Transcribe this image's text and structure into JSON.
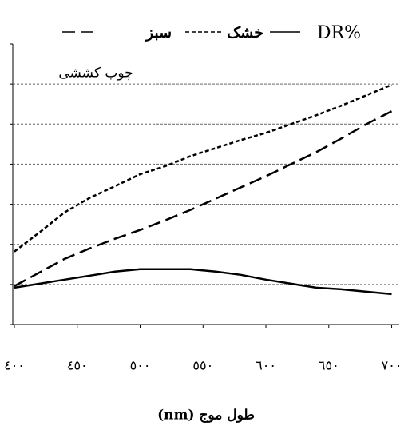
{
  "chart_data": {
    "type": "line",
    "annotation": "چوب کششی",
    "x_label": "طول موج (nm)",
    "x": [
      400,
      420,
      440,
      460,
      480,
      500,
      520,
      540,
      560,
      580,
      600,
      620,
      640,
      660,
      680,
      700
    ],
    "series": [
      {
        "name": "DR%",
        "color": "#000000",
        "dash": "solid",
        "values": [
          9.2,
          10.2,
          11.2,
          12.2,
          13.2,
          13.8,
          13.8,
          13.8,
          13.2,
          12.4,
          11.2,
          10.2,
          9.2,
          8.8,
          8.2,
          7.6
        ]
      },
      {
        "name": "خشک",
        "color": "#000000",
        "dash": "short",
        "values": [
          18.2,
          23,
          28,
          31.6,
          34.5,
          37.5,
          39.5,
          42,
          44,
          46,
          47.8,
          50,
          52.2,
          54.6,
          57.2,
          59.8
        ]
      },
      {
        "name": "سبز",
        "color": "#000000",
        "dash": "long",
        "values": [
          9.6,
          13,
          16.4,
          19,
          21.4,
          23.6,
          26,
          28.6,
          31.4,
          34.2,
          37,
          40,
          43,
          46.4,
          50,
          53.2
        ]
      }
    ],
    "xlim": [
      400,
      706
    ],
    "ylim": [
      0,
      70
    ],
    "xticks": [
      {
        "value": 400,
        "label": "٤٠٠"
      },
      {
        "value": 450,
        "label": "٤٥٠"
      },
      {
        "value": 500,
        "label": "٥٠٠"
      },
      {
        "value": 550,
        "label": "٥٥٠"
      },
      {
        "value": 600,
        "label": "٦٠٠"
      },
      {
        "value": 650,
        "label": "٦٥٠"
      },
      {
        "value": 700,
        "label": "٧٠٠"
      }
    ],
    "yticks": [
      0,
      10,
      20,
      30,
      40,
      50,
      60,
      70
    ],
    "grid": true
  }
}
